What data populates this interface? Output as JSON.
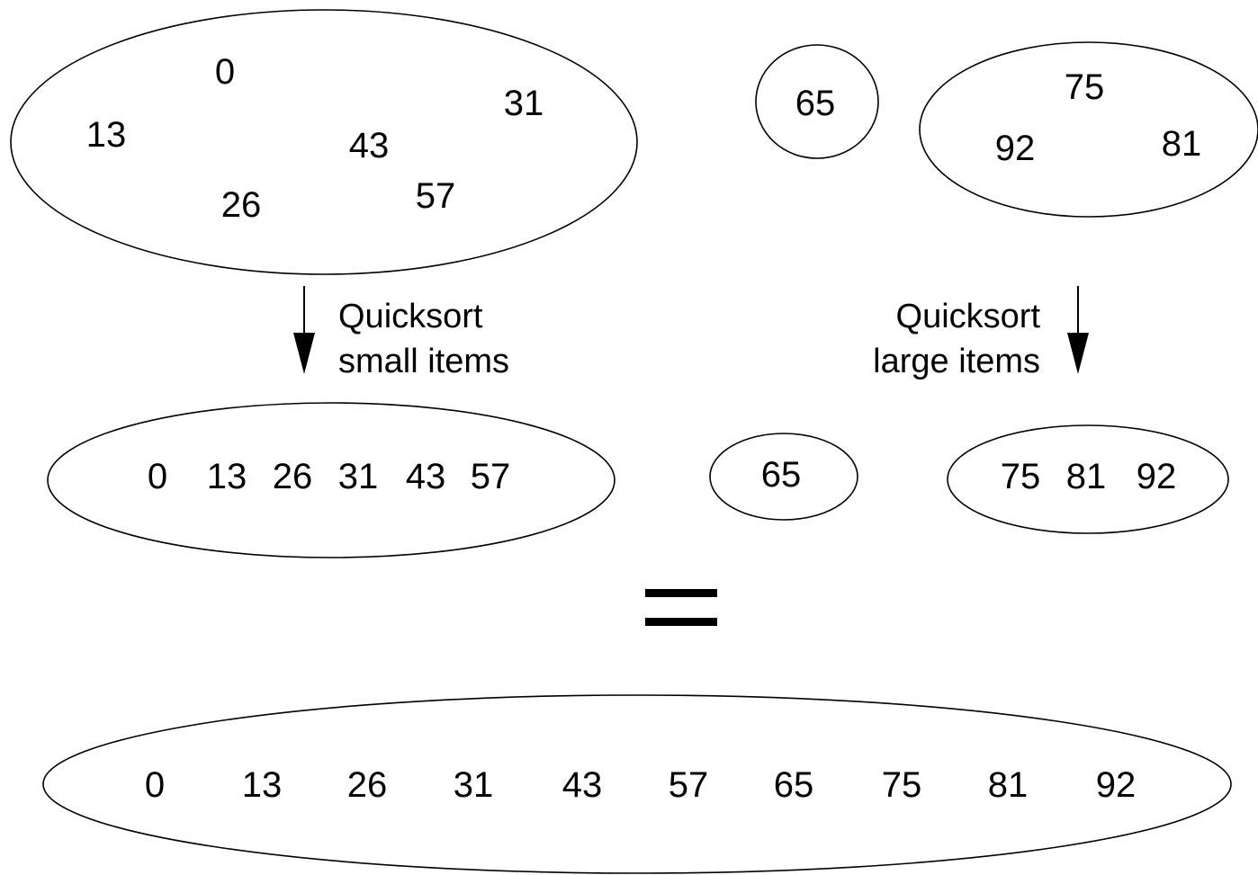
{
  "colors": {
    "stroke": "#000000",
    "text": "#000000",
    "background": "#ffffff"
  },
  "partition": {
    "small_set": [
      "0",
      "13",
      "31",
      "43",
      "26",
      "57"
    ],
    "pivot": "65",
    "large_set": [
      "75",
      "92",
      "81"
    ]
  },
  "steps": {
    "left_caption_line1": "Quicksort",
    "left_caption_line2": "small items",
    "right_caption_line1": "Quicksort",
    "right_caption_line2": "large items"
  },
  "sorted": {
    "small_set": [
      "0",
      "13",
      "26",
      "31",
      "43",
      "57"
    ],
    "pivot": "65",
    "large_set": [
      "75",
      "81",
      "92"
    ]
  },
  "equals_symbol": "=",
  "result": [
    "0",
    "13",
    "26",
    "31",
    "43",
    "57",
    "65",
    "75",
    "81",
    "92"
  ]
}
